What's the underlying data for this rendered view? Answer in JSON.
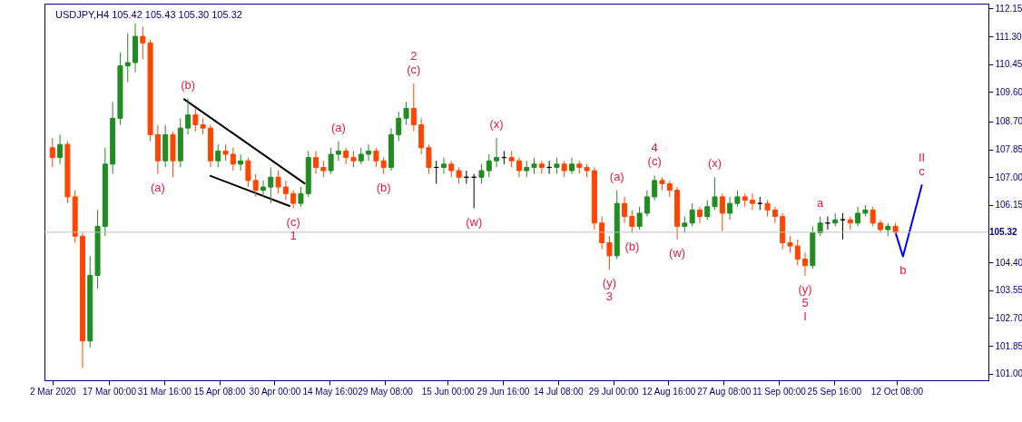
{
  "chart_data": {
    "type": "candlestick",
    "title": "USDJPY,H4  105.42 105.43 105.30 105.32",
    "x": [
      "2020-03-02",
      "2020-03-04",
      "2020-03-06",
      "2020-03-08",
      "2020-03-10",
      "2020-03-12",
      "2020-03-14",
      "2020-03-16",
      "2020-03-18",
      "2020-03-20",
      "2020-03-22",
      "2020-03-24",
      "2020-03-26",
      "2020-03-28",
      "2020-03-30",
      "2020-04-01",
      "2020-04-03",
      "2020-04-05",
      "2020-04-07",
      "2020-04-09",
      "2020-04-11",
      "2020-04-13",
      "2020-04-15",
      "2020-04-17",
      "2020-04-19",
      "2020-04-21",
      "2020-04-23",
      "2020-04-25",
      "2020-04-27",
      "2020-04-29",
      "2020-05-01",
      "2020-05-03",
      "2020-05-05",
      "2020-05-07",
      "2020-05-09",
      "2020-05-11",
      "2020-05-13",
      "2020-05-15",
      "2020-05-17",
      "2020-05-19",
      "2020-05-21",
      "2020-05-23",
      "2020-05-25",
      "2020-05-27",
      "2020-05-29",
      "2020-05-31",
      "2020-06-02",
      "2020-06-04",
      "2020-06-06",
      "2020-06-08",
      "2020-06-10",
      "2020-06-12",
      "2020-06-14",
      "2020-06-16",
      "2020-06-18",
      "2020-06-20",
      "2020-06-22",
      "2020-06-24",
      "2020-06-26",
      "2020-06-28",
      "2020-06-30",
      "2020-07-02",
      "2020-07-04",
      "2020-07-06",
      "2020-07-08",
      "2020-07-10",
      "2020-07-12",
      "2020-07-14",
      "2020-07-16",
      "2020-07-18",
      "2020-07-20",
      "2020-07-22",
      "2020-07-24",
      "2020-07-26",
      "2020-07-28",
      "2020-07-30",
      "2020-08-01",
      "2020-08-03",
      "2020-08-05",
      "2020-08-07",
      "2020-08-09",
      "2020-08-11",
      "2020-08-13",
      "2020-08-15",
      "2020-08-17",
      "2020-08-19",
      "2020-08-21",
      "2020-08-23",
      "2020-08-25",
      "2020-08-27",
      "2020-08-29",
      "2020-08-31",
      "2020-09-02",
      "2020-09-04",
      "2020-09-06",
      "2020-09-08",
      "2020-09-10",
      "2020-09-12",
      "2020-09-14",
      "2020-09-16",
      "2020-09-18",
      "2020-09-20",
      "2020-09-22",
      "2020-09-24",
      "2020-09-26",
      "2020-09-28",
      "2020-09-30",
      "2020-10-02",
      "2020-10-04",
      "2020-10-06",
      "2020-10-08",
      "2020-10-10",
      "2020-10-12"
    ],
    "ohlc": [
      [
        107.9,
        108.2,
        107.3,
        107.6
      ],
      [
        107.6,
        108.3,
        107.4,
        108.0
      ],
      [
        108.0,
        108.1,
        106.2,
        106.4
      ],
      [
        106.4,
        106.6,
        105.0,
        105.2
      ],
      [
        105.2,
        105.3,
        101.18,
        102.0
      ],
      [
        102.0,
        104.6,
        101.8,
        104.0
      ],
      [
        104.0,
        106.0,
        103.6,
        105.5
      ],
      [
        105.5,
        107.9,
        105.2,
        107.4
      ],
      [
        107.4,
        109.3,
        107.1,
        108.8
      ],
      [
        108.8,
        110.8,
        108.6,
        110.4
      ],
      [
        110.4,
        111.4,
        109.9,
        110.5
      ],
      [
        110.5,
        111.7,
        110.2,
        111.3
      ],
      [
        111.3,
        111.6,
        110.6,
        111.1
      ],
      [
        111.1,
        111.2,
        108.1,
        108.3
      ],
      [
        108.3,
        108.6,
        107.1,
        107.5
      ],
      [
        107.5,
        108.6,
        107.3,
        108.3
      ],
      [
        108.3,
        108.4,
        107.0,
        107.5
      ],
      [
        107.5,
        108.8,
        107.3,
        108.5
      ],
      [
        108.5,
        109.4,
        108.3,
        108.9
      ],
      [
        108.9,
        109.1,
        108.4,
        108.6
      ],
      [
        108.6,
        108.8,
        108.3,
        108.5
      ],
      [
        108.5,
        108.6,
        107.3,
        107.5
      ],
      [
        107.5,
        108.0,
        107.3,
        107.8
      ],
      [
        107.8,
        108.0,
        107.5,
        107.7
      ],
      [
        107.7,
        107.9,
        107.2,
        107.4
      ],
      [
        107.4,
        107.7,
        107.2,
        107.5
      ],
      [
        107.5,
        107.6,
        106.7,
        106.9
      ],
      [
        106.9,
        107.1,
        106.4,
        106.6
      ],
      [
        106.6,
        106.9,
        106.4,
        106.7
      ],
      [
        106.7,
        107.3,
        106.2,
        107.0
      ],
      [
        107.0,
        107.2,
        106.5,
        106.7
      ],
      [
        106.7,
        106.9,
        106.3,
        106.5
      ],
      [
        106.5,
        106.6,
        106.05,
        106.2
      ],
      [
        106.2,
        106.7,
        106.1,
        106.5
      ],
      [
        106.5,
        107.8,
        106.4,
        107.6
      ],
      [
        107.6,
        107.8,
        107.1,
        107.3
      ],
      [
        107.3,
        107.5,
        107.0,
        107.2
      ],
      [
        107.2,
        107.9,
        107.1,
        107.7
      ],
      [
        107.7,
        108.1,
        107.5,
        107.8
      ],
      [
        107.8,
        107.9,
        107.4,
        107.6
      ],
      [
        107.6,
        107.8,
        107.3,
        107.5
      ],
      [
        107.5,
        107.9,
        107.4,
        107.7
      ],
      [
        107.7,
        108.0,
        107.5,
        107.8
      ],
      [
        107.8,
        107.9,
        107.3,
        107.5
      ],
      [
        107.5,
        107.6,
        107.1,
        107.3
      ],
      [
        107.3,
        108.5,
        107.2,
        108.3
      ],
      [
        108.3,
        109.0,
        108.1,
        108.8
      ],
      [
        108.8,
        109.3,
        108.6,
        109.1
      ],
      [
        109.1,
        109.87,
        108.4,
        108.6
      ],
      [
        108.6,
        108.8,
        107.7,
        107.9
      ],
      [
        107.9,
        108.0,
        107.1,
        107.3
      ],
      [
        107.3,
        107.5,
        106.8,
        107.3
      ],
      [
        107.3,
        107.6,
        107.1,
        107.4
      ],
      [
        107.4,
        107.5,
        107.0,
        107.2
      ],
      [
        107.2,
        107.3,
        106.8,
        107.0
      ],
      [
        107.0,
        107.2,
        106.8,
        107.0
      ],
      [
        107.0,
        107.1,
        106.05,
        107.0
      ],
      [
        107.0,
        107.4,
        106.8,
        107.2
      ],
      [
        107.2,
        107.7,
        107.0,
        107.5
      ],
      [
        107.5,
        108.2,
        107.3,
        107.6
      ],
      [
        107.6,
        107.8,
        107.4,
        107.6
      ],
      [
        107.6,
        107.8,
        107.3,
        107.5
      ],
      [
        107.5,
        107.6,
        107.0,
        107.2
      ],
      [
        107.2,
        107.5,
        107.0,
        107.3
      ],
      [
        107.3,
        107.6,
        107.1,
        107.4
      ],
      [
        107.4,
        107.5,
        107.1,
        107.3
      ],
      [
        107.3,
        107.5,
        107.1,
        107.3
      ],
      [
        107.3,
        107.6,
        107.1,
        107.4
      ],
      [
        107.4,
        107.5,
        107.0,
        107.2
      ],
      [
        107.2,
        107.6,
        107.1,
        107.4
      ],
      [
        107.4,
        107.5,
        107.1,
        107.3
      ],
      [
        107.3,
        107.4,
        107.0,
        107.2
      ],
      [
        107.2,
        107.3,
        105.4,
        105.6
      ],
      [
        105.6,
        105.8,
        104.8,
        105.0
      ],
      [
        105.0,
        105.2,
        104.17,
        104.6
      ],
      [
        104.6,
        106.6,
        104.5,
        106.2
      ],
      [
        106.2,
        106.4,
        105.6,
        105.8
      ],
      [
        105.8,
        106.0,
        105.3,
        105.5
      ],
      [
        105.5,
        106.1,
        105.4,
        105.9
      ],
      [
        105.9,
        106.6,
        105.8,
        106.4
      ],
      [
        106.4,
        107.05,
        106.3,
        106.9
      ],
      [
        106.9,
        107.0,
        106.6,
        106.8
      ],
      [
        106.8,
        106.9,
        106.4,
        106.6
      ],
      [
        106.6,
        106.7,
        105.1,
        105.5
      ],
      [
        105.5,
        105.8,
        105.3,
        105.6
      ],
      [
        105.6,
        106.2,
        105.5,
        106.0
      ],
      [
        106.0,
        106.1,
        105.6,
        105.8
      ],
      [
        105.8,
        106.3,
        105.7,
        106.1
      ],
      [
        106.1,
        107.0,
        106.0,
        106.4
      ],
      [
        106.4,
        106.5,
        105.35,
        105.9
      ],
      [
        105.9,
        106.4,
        105.7,
        106.2
      ],
      [
        106.2,
        106.6,
        106.1,
        106.4
      ],
      [
        106.4,
        106.5,
        106.1,
        106.3
      ],
      [
        106.3,
        106.5,
        106.0,
        106.2
      ],
      [
        106.2,
        106.4,
        106.0,
        106.2
      ],
      [
        106.2,
        106.3,
        105.8,
        106.0
      ],
      [
        106.0,
        106.1,
        105.6,
        105.8
      ],
      [
        105.8,
        105.9,
        104.8,
        105.0
      ],
      [
        105.0,
        105.2,
        104.7,
        104.9
      ],
      [
        104.9,
        105.1,
        104.3,
        104.5
      ],
      [
        104.5,
        104.7,
        103.99,
        104.3
      ],
      [
        104.3,
        105.5,
        104.2,
        105.3
      ],
      [
        105.3,
        105.8,
        105.2,
        105.6
      ],
      [
        105.6,
        105.8,
        105.4,
        105.6
      ],
      [
        105.6,
        105.9,
        105.5,
        105.7
      ],
      [
        105.7,
        105.9,
        105.1,
        105.7
      ],
      [
        105.7,
        105.8,
        105.4,
        105.6
      ],
      [
        105.6,
        106.1,
        105.5,
        105.9
      ],
      [
        105.9,
        106.15,
        105.8,
        106.0
      ],
      [
        106.0,
        106.1,
        105.5,
        105.6
      ],
      [
        105.6,
        105.7,
        105.3,
        105.4
      ],
      [
        105.4,
        105.6,
        105.2,
        105.5
      ],
      [
        105.5,
        105.6,
        105.2,
        105.32
      ]
    ],
    "colors": [
      "#ff4500",
      "#228b22",
      "#ff4500",
      "#ff4500",
      "#ff4500",
      "#228b22",
      "#228b22",
      "#228b22",
      "#228b22",
      "#228b22",
      "#228b22",
      "#228b22",
      "#ff4500",
      "#ff4500",
      "#ff4500",
      "#228b22",
      "#ff4500",
      "#228b22",
      "#228b22",
      "#ff4500",
      "#ff4500",
      "#ff4500",
      "#228b22",
      "#ff4500",
      "#ff4500",
      "#228b22",
      "#ff4500",
      "#ff4500",
      "#228b22",
      "#228b22",
      "#ff4500",
      "#ff4500",
      "#ff4500",
      "#228b22",
      "#228b22",
      "#ff4500",
      "#ff4500",
      "#228b22",
      "#228b22",
      "#ff4500",
      "#ff4500",
      "#228b22",
      "#228b22",
      "#ff4500",
      "#ff4500",
      "#228b22",
      "#228b22",
      "#228b22",
      "#ff4500",
      "#ff4500",
      "#ff4500",
      "#000000",
      "#228b22",
      "#ff4500",
      "#ff4500",
      "#000000",
      "#000000",
      "#228b22",
      "#228b22",
      "#228b22",
      "#000000",
      "#ff4500",
      "#ff4500",
      "#228b22",
      "#228b22",
      "#ff4500",
      "#000000",
      "#228b22",
      "#ff4500",
      "#228b22",
      "#ff4500",
      "#ff4500",
      "#ff4500",
      "#ff4500",
      "#ff4500",
      "#228b22",
      "#ff4500",
      "#ff4500",
      "#228b22",
      "#228b22",
      "#228b22",
      "#ff4500",
      "#ff4500",
      "#ff4500",
      "#228b22",
      "#228b22",
      "#ff4500",
      "#228b22",
      "#228b22",
      "#ff4500",
      "#228b22",
      "#228b22",
      "#ff4500",
      "#ff4500",
      "#000000",
      "#ff4500",
      "#ff4500",
      "#ff4500",
      "#ff4500",
      "#ff4500",
      "#ff4500",
      "#228b22",
      "#228b22",
      "#000000",
      "#228b22",
      "#000000",
      "#ff4500",
      "#228b22",
      "#228b22",
      "#ff4500",
      "#ff4500",
      "#228b22",
      "#ff4500"
    ],
    "series": [
      {
        "type": "line",
        "color": "#000000",
        "x": [
          "2020-04-06",
          "2020-05-08"
        ],
        "values": [
          109.38,
          106.81
        ]
      },
      {
        "type": "line",
        "color": "#000000",
        "x": [
          "2020-04-13",
          "2020-05-04"
        ],
        "values": [
          107.04,
          106.12
        ]
      },
      {
        "type": "line",
        "color": "#0000ff",
        "x": [
          "2020-10-12",
          "2020-10-14",
          "2020-10-19"
        ],
        "values": [
          105.32,
          104.58,
          106.75
        ]
      }
    ],
    "xlim": [
      "2020-03-01T02:00",
      "2020-11-04T12:00"
    ],
    "xticks": [
      {
        "value": "2020-03-02",
        "label": "2 Mar 2020"
      },
      {
        "value": "2020-03-17T00:00",
        "label": "17 Mar 00:00"
      },
      {
        "value": "2020-03-31T16:00",
        "label": "31 Mar 16:00"
      },
      {
        "value": "2020-04-15T08:00",
        "label": "15 Apr 08:00"
      },
      {
        "value": "2020-04-30T00:00",
        "label": "30 Apr 00:00"
      },
      {
        "value": "2020-05-14T16:00",
        "label": "14 May 16:00"
      },
      {
        "value": "2020-05-29T08:00",
        "label": "29 May 08:00"
      },
      {
        "value": "2020-06-15T00:00",
        "label": "15 Jun 00:00"
      },
      {
        "value": "2020-06-29T16:00",
        "label": "29 Jun 16:00"
      },
      {
        "value": "2020-07-14T08:00",
        "label": "14 Jul 08:00"
      },
      {
        "value": "2020-07-29T00:00",
        "label": "29 Jul 00:00"
      },
      {
        "value": "2020-08-12T16:00",
        "label": "12 Aug 16:00"
      },
      {
        "value": "2020-08-27T08:00",
        "label": "27 Aug 08:00"
      },
      {
        "value": "2020-09-11T00:00",
        "label": "11 Sep 00:00"
      },
      {
        "value": "2020-09-25T16:00",
        "label": "25 Sep 16:00"
      },
      {
        "value": "2020-10-12T08:00",
        "label": "12 Oct 08:00"
      }
    ],
    "ylim": [
      100.8,
      112.3
    ],
    "yticks": [
      {
        "value": 112.15,
        "label": "112.15"
      },
      {
        "value": 111.3,
        "label": "111.30"
      },
      {
        "value": 110.45,
        "label": "110.45"
      },
      {
        "value": 109.6,
        "label": "109.60"
      },
      {
        "value": 108.7,
        "label": "108.70"
      },
      {
        "value": 107.85,
        "label": "107.85"
      },
      {
        "value": 107,
        "label": "107.00"
      },
      {
        "value": 106.15,
        "label": "106.15"
      },
      {
        "value": 104.4,
        "label": "104.40"
      },
      {
        "value": 103.55,
        "label": "103.55"
      },
      {
        "value": 102.7,
        "label": "102.70"
      },
      {
        "value": 101.85,
        "label": "101.85"
      },
      {
        "value": 101,
        "label": "101.00"
      }
    ],
    "ref_lines": [
      {
        "axis": "y",
        "value": 105.32,
        "label": "105.32",
        "color": "#c0c0c0"
      }
    ],
    "annotations": [
      {
        "text": "(b)",
        "x": "2020-04-07",
        "y": 109.4
      },
      {
        "text": "(a)",
        "x": "2020-03-30",
        "y": 107.1
      },
      {
        "text": "(c)",
        "x": "2020-05-05",
        "y": 106.05
      },
      {
        "text": "1",
        "x": "2020-05-05",
        "y": 106.05
      },
      {
        "text": "(a)",
        "x": "2020-05-17",
        "y": 108.1
      },
      {
        "text": "(b)",
        "x": "2020-05-29",
        "y": 107.1
      },
      {
        "text": "(c)",
        "x": "2020-06-06",
        "y": 109.87
      },
      {
        "text": "2",
        "x": "2020-06-06",
        "y": 109.87
      },
      {
        "text": "(w)",
        "x": "2020-06-22",
        "y": 106.05
      },
      {
        "text": "(x)",
        "x": "2020-06-28",
        "y": 108.2
      },
      {
        "text": "(a)",
        "x": "2020-07-30",
        "y": 106.6
      },
      {
        "text": "(y)",
        "x": "2020-07-28",
        "y": 104.17
      },
      {
        "text": "3",
        "x": "2020-07-28",
        "y": 104.17
      },
      {
        "text": "(b)",
        "x": "2020-08-03",
        "y": 105.3
      },
      {
        "text": "(c)",
        "x": "2020-08-09",
        "y": 107.05
      },
      {
        "text": "4",
        "x": "2020-08-09",
        "y": 107.05
      },
      {
        "text": "(w)",
        "x": "2020-08-15",
        "y": 105.1
      },
      {
        "text": "(x)",
        "x": "2020-08-25",
        "y": 107.0
      },
      {
        "text": "(y)",
        "x": "2020-09-18",
        "y": 103.99
      },
      {
        "text": "5",
        "x": "2020-09-18",
        "y": 103.99
      },
      {
        "text": "I",
        "x": "2020-09-18",
        "y": 103.99
      },
      {
        "text": "a",
        "x": "2020-09-22",
        "y": 105.8
      },
      {
        "text": "b",
        "x": "2020-10-14",
        "y": 104.58
      },
      {
        "text": "c",
        "x": "2020-10-19",
        "y": 106.75
      },
      {
        "text": "II",
        "x": "2020-10-19",
        "y": 106.75
      }
    ]
  }
}
